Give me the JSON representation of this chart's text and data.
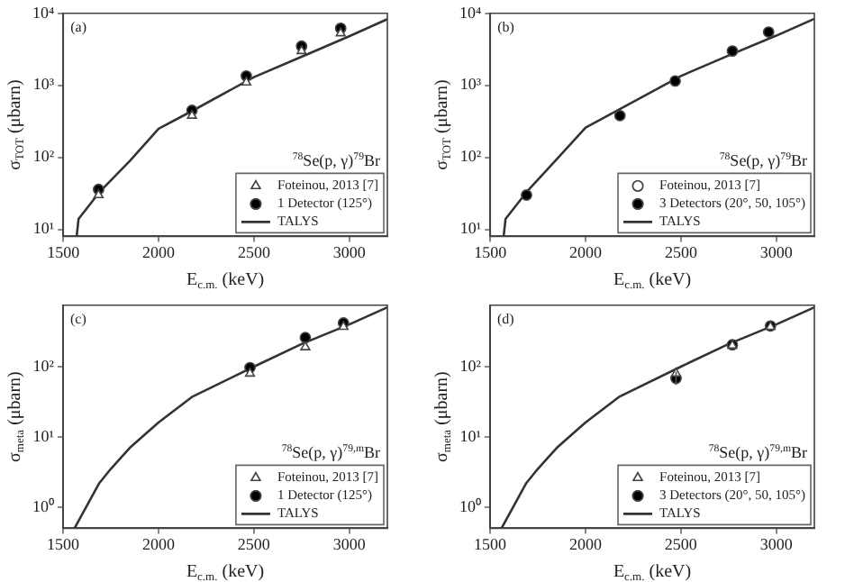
{
  "chart_data": [
    {
      "type": "scatter",
      "title": "(a)",
      "xlabel": "E$_{c.m.}$ (keV)",
      "ylabel": "σ$_{TOT}$ (μbarn)",
      "annotations": [
        "$^{78}$Se(p, γ)$^{79}$Br"
      ],
      "log": "y",
      "grid": false,
      "legend": "bottom right",
      "xlim": [
        1500,
        3200
      ],
      "xticks": [
        1500,
        2000,
        2500,
        3000
      ],
      "ylim": [
        8,
        10000
      ],
      "yticks": [
        {
          "value": 10,
          "label": "10¹"
        },
        {
          "value": 100,
          "label": "10²"
        },
        {
          "value": 1000,
          "label": "10³"
        },
        {
          "value": 10000,
          "label": "10⁴"
        }
      ],
      "series": [
        {
          "name": "Foteinou, 2013 [7]",
          "color": "#ffffff",
          "marker": "triangle",
          "x": [
            1685,
            2175,
            2460,
            2750,
            2955
          ],
          "values": [
            30,
            380,
            1100,
            3000,
            5300
          ]
        },
        {
          "name": "1 Detector (125°)",
          "color": "#000000",
          "marker": "circle",
          "x": [
            1685,
            2175,
            2460,
            2750,
            2955
          ],
          "values": [
            36,
            450,
            1350,
            3500,
            6200
          ]
        },
        {
          "name": "TALYS",
          "type": "line",
          "color": "#333333",
          "marker": "none",
          "x": [
            1570,
            1580,
            1690,
            1850,
            2000,
            2175,
            2500,
            2750,
            3000,
            3200
          ],
          "values": [
            8,
            14,
            33,
            90,
            250,
            440,
            1300,
            2500,
            4800,
            8300
          ]
        }
      ]
    },
    {
      "type": "scatter",
      "title": "(b)",
      "xlabel": "E$_{c.m.}$ (keV)",
      "ylabel": "σ$_{TOT}$ (μbarn)",
      "annotations": [
        "$^{78}$Se(p, γ)$^{79}$Br"
      ],
      "log": "y",
      "grid": false,
      "legend": "bottom right",
      "xlim": [
        1500,
        3200
      ],
      "xticks": [
        1500,
        2000,
        2500,
        3000
      ],
      "ylim": [
        8,
        10000
      ],
      "yticks": [
        {
          "value": 10,
          "label": "10¹"
        },
        {
          "value": 100,
          "label": "10²"
        },
        {
          "value": 1000,
          "label": "10³"
        },
        {
          "value": 10000,
          "label": "10⁴"
        }
      ],
      "series": [
        {
          "name": "Foteinou, 2013 [7]",
          "color": "#ffffff",
          "marker": "circle"
        },
        {
          "name": "3 Detectors (20°, 50, 105°)",
          "color": "#000000",
          "marker": "circle",
          "x": [
            1690,
            2180,
            2470,
            2770,
            2960
          ],
          "values": [
            30,
            380,
            1150,
            3000,
            5500
          ]
        },
        {
          "name": "TALYS",
          "type": "line",
          "color": "#333333",
          "marker": "none",
          "x": [
            1570,
            1580,
            1690,
            1850,
            2000,
            2175,
            2500,
            2750,
            3000,
            3200
          ],
          "values": [
            8,
            14,
            33,
            95,
            260,
            460,
            1350,
            2600,
            4900,
            8400
          ]
        }
      ]
    },
    {
      "type": "scatter",
      "title": "(c)",
      "xlabel": "E$_{c.m.}$ (keV)",
      "ylabel": "σ$_{meta}$ (μbarn)",
      "annotations": [
        "$^{78}$Se(p, γ)$^{79,m}$Br"
      ],
      "log": "y",
      "grid": false,
      "legend": "bottom right",
      "xlim": [
        1500,
        3200
      ],
      "xticks": [
        1500,
        2000,
        2500,
        3000
      ],
      "ylim": [
        0.5,
        750
      ],
      "yticks": [
        {
          "value": 1,
          "label": "10⁰"
        },
        {
          "value": 10,
          "label": "10¹"
        },
        {
          "value": 100,
          "label": "10²"
        }
      ],
      "series": [
        {
          "name": "Foteinou, 2013 [7]",
          "color": "#ffffff",
          "marker": "triangle",
          "x": [
            2480,
            2770,
            2970
          ],
          "values": [
            80,
            190,
            370
          ]
        },
        {
          "name": "1 Detector (125°)",
          "color": "#000000",
          "marker": "circle",
          "x": [
            2480,
            2770,
            2970
          ],
          "values": [
            97,
            260,
            420
          ]
        },
        {
          "name": "TALYS",
          "type": "line",
          "color": "#333333",
          "marker": "none",
          "x": [
            1560,
            1690,
            1750,
            1850,
            2000,
            2175,
            2500,
            2750,
            3000,
            3200
          ],
          "values": [
            0.5,
            2.2,
            3.5,
            7,
            16,
            37,
            100,
            210,
            400,
            700
          ]
        }
      ]
    },
    {
      "type": "scatter",
      "title": "(d)",
      "xlabel": "E$_{c.m.}$ (keV)",
      "ylabel": "σ$_{meta}$ (μbarn)",
      "annotations": [
        "$^{78}$Se(p, γ)$^{79,m}$Br"
      ],
      "log": "y",
      "grid": false,
      "legend": "bottom right",
      "xlim": [
        1500,
        3200
      ],
      "xticks": [
        1500,
        2000,
        2500,
        3000
      ],
      "ylim": [
        0.5,
        750
      ],
      "yticks": [
        {
          "value": 1,
          "label": "10⁰"
        },
        {
          "value": 10,
          "label": "10¹"
        },
        {
          "value": 100,
          "label": "10²"
        }
      ],
      "series": [
        {
          "name": "Foteinou, 2013 [7]",
          "color": "#ffffff",
          "marker": "triangle",
          "x": [
            2475,
            2770,
            2970
          ],
          "values": [
            80,
            200,
            370
          ]
        },
        {
          "name": "3 Detectors (20°, 50, 105°)",
          "color": "#000000",
          "marker": "circle",
          "x": [
            2475,
            2770,
            2970
          ],
          "values": [
            68,
            205,
            380
          ],
          "errors": [
            [
              55,
              85
            ],
            null,
            null
          ]
        },
        {
          "name": "TALYS",
          "type": "line",
          "color": "#333333",
          "marker": "none",
          "x": [
            1560,
            1690,
            1750,
            1850,
            2000,
            2175,
            2500,
            2750,
            3000,
            3200
          ],
          "values": [
            0.5,
            2.2,
            3.5,
            7,
            16,
            37,
            100,
            210,
            400,
            700
          ]
        }
      ]
    }
  ]
}
